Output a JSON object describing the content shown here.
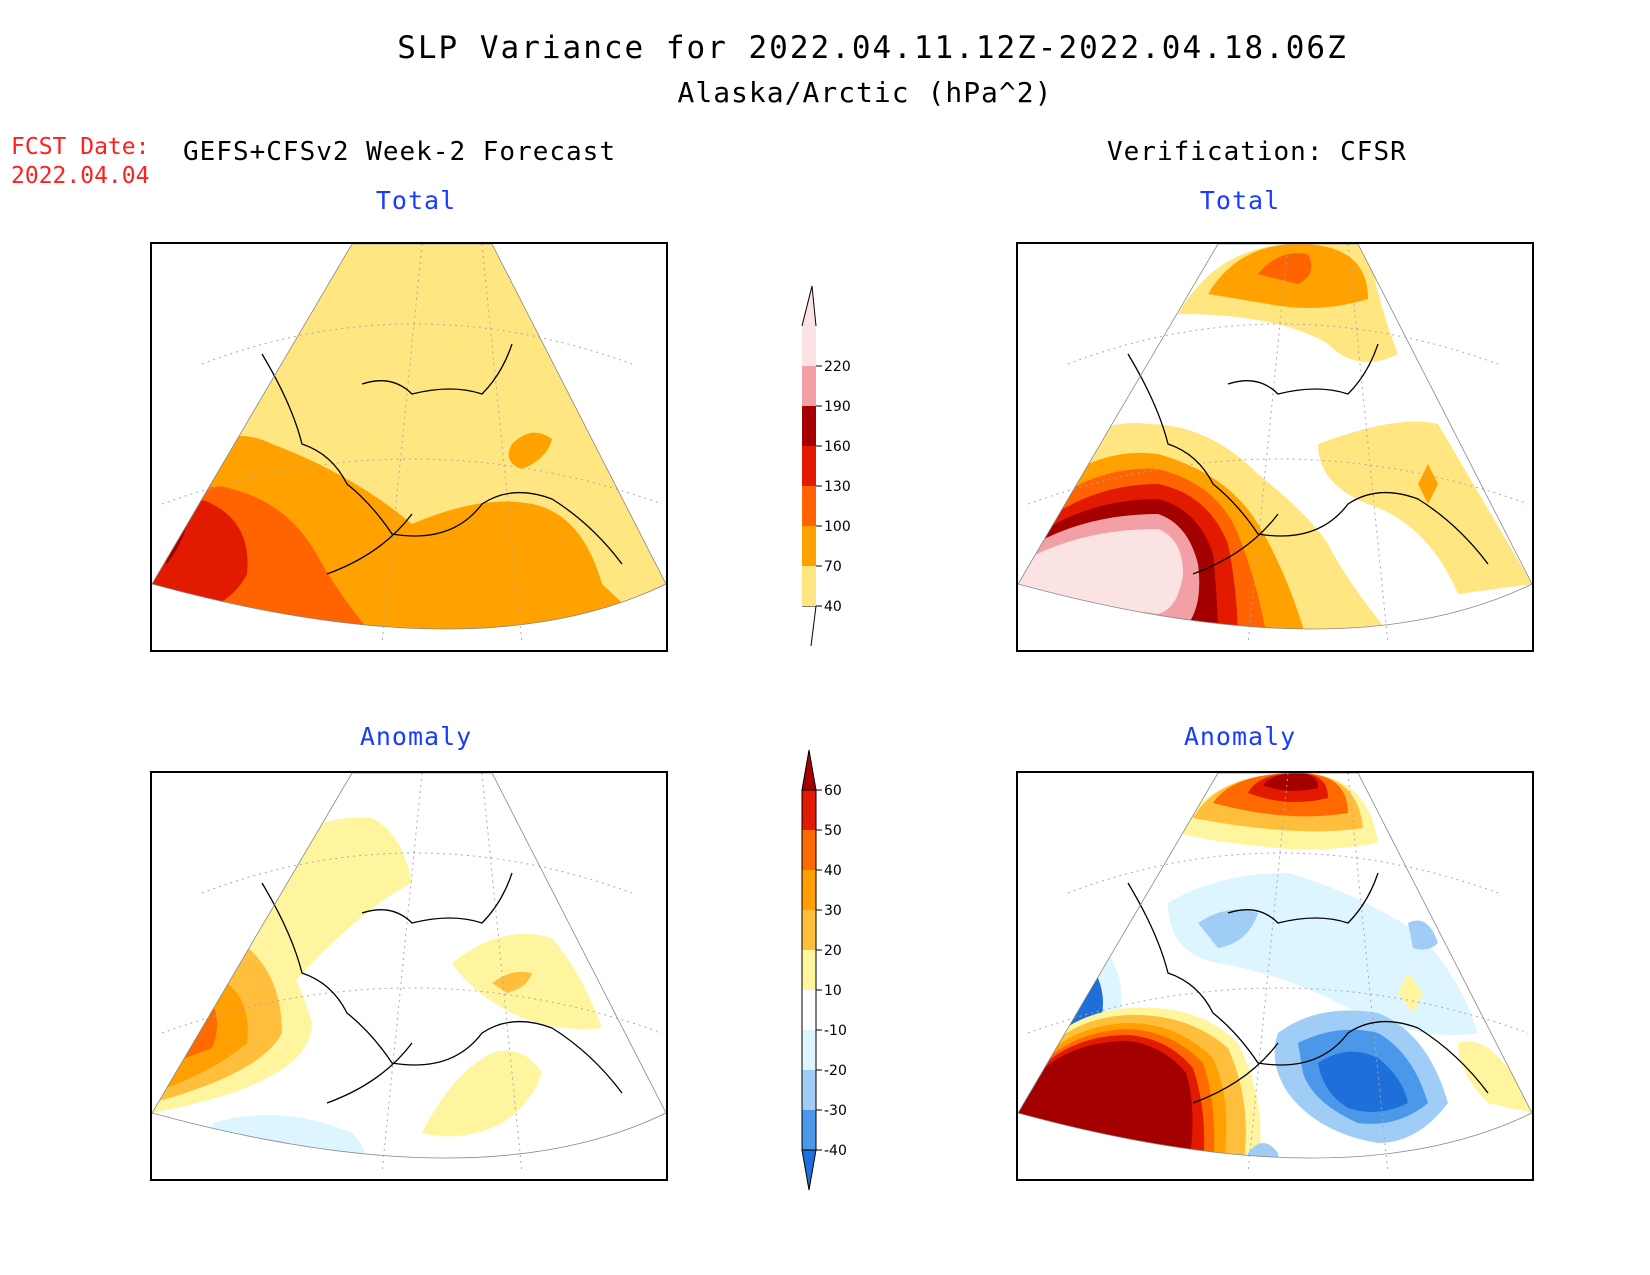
{
  "title": {
    "line1": "SLP Variance for 2022.04.11.12Z-2022.04.18.06Z",
    "line2": "Alaska/Arctic (hPa^2)"
  },
  "forecast_date": {
    "label": "FCST Date:",
    "value": "2022.04.04"
  },
  "columns": {
    "left": "GEFS+CFSv2 Week-2 Forecast",
    "right": "Verification: CFSR"
  },
  "panels": {
    "forecast_total": "Total",
    "verification_total": "Total",
    "forecast_anomaly": "Anomaly",
    "verification_anomaly": "Anomaly"
  },
  "total_scale": {
    "levels": [
      "40",
      "70",
      "100",
      "130",
      "160",
      "190",
      "220"
    ],
    "colors": [
      "#ffe680",
      "#ffa200",
      "#ff6400",
      "#e11a00",
      "#a50000",
      "#f2a0a5",
      "#fce3e3"
    ]
  },
  "anomaly_scale": {
    "levels": [
      "-40",
      "-30",
      "-20",
      "-10",
      "10",
      "20",
      "30",
      "40",
      "50",
      "60"
    ],
    "colors": [
      "#1e6fd9",
      "#4b98ea",
      "#a0cdf6",
      "#dcf5ff",
      "#ffffff",
      "#fff59f",
      "#ffbf3c",
      "#ffa000",
      "#ff6a00",
      "#e11a00",
      "#a50000"
    ]
  }
}
